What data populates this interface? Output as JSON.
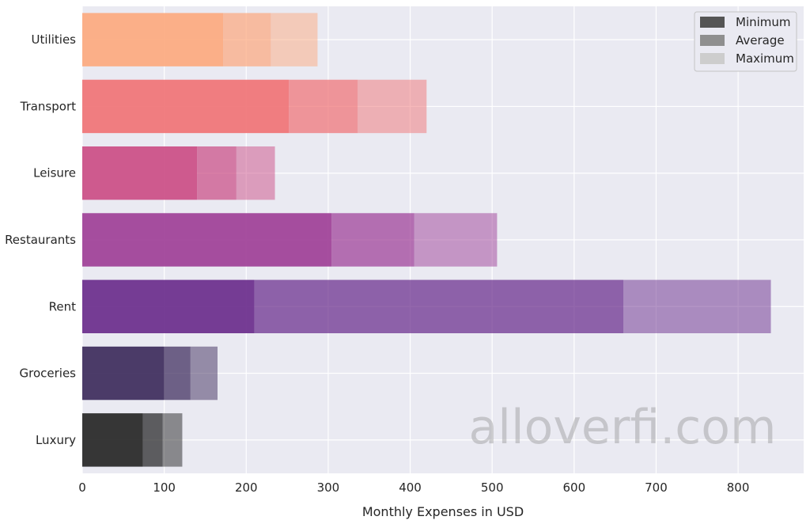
{
  "chart_data": {
    "type": "bar",
    "orientation": "horizontal",
    "title": "",
    "xlabel": "Monthly Expenses in USD",
    "ylabel": "",
    "xlim": [
      0,
      880
    ],
    "xticks": [
      0,
      100,
      200,
      300,
      400,
      500,
      600,
      700,
      800
    ],
    "grid": true,
    "legend_position": "top-right",
    "categories": [
      "Luxury",
      "Groceries",
      "Rent",
      "Restaurants",
      "Leisure",
      "Transport",
      "Utilities"
    ],
    "colors": [
      "#262626",
      "#3d2b5c",
      "#6a2c8c",
      "#9e3f97",
      "#cb4d85",
      "#f07376",
      "#fca97f"
    ],
    "series": [
      {
        "name": "Minimum",
        "values": [
          74,
          100,
          210,
          304,
          140,
          252,
          172
        ],
        "opacity": 0.92,
        "legend_color": "#555555"
      },
      {
        "name": "Average",
        "values": [
          98,
          132,
          660,
          405,
          188,
          336,
          230
        ],
        "opacity": 0.72,
        "legend_color": "#8f8f8f"
      },
      {
        "name": "Maximum",
        "values": [
          122,
          165,
          840,
          506,
          235,
          420,
          287
        ],
        "opacity": 0.5,
        "legend_color": "#cdcdcd"
      }
    ]
  },
  "watermark": "alloverfi.com"
}
